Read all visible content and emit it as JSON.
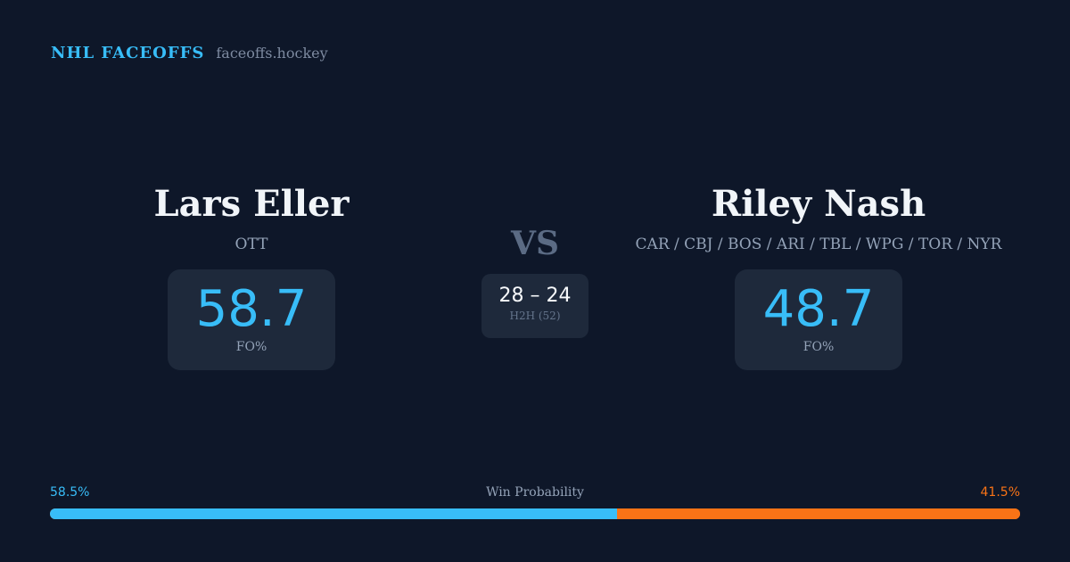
{
  "brand": {
    "title": "NHL FACEOFFS",
    "url": "faceoffs.hockey"
  },
  "left": {
    "name": "Lars Eller",
    "team": "OTT",
    "fo_pct": "58.7",
    "fo_label": "FO%"
  },
  "right": {
    "name": "Riley Nash",
    "team": "CAR / CBJ / BOS / ARI / TBL / WPG / TOR / NYR",
    "fo_pct": "48.7",
    "fo_label": "FO%"
  },
  "vs": "VS",
  "h2h": {
    "score": "28 – 24",
    "label": "H2H (52)"
  },
  "win_probability": {
    "label": "Win Probability",
    "left": "58.5%",
    "right": "41.5%",
    "left_value": 58.5,
    "colors": {
      "left": "#38bdf8",
      "right": "#f97316"
    }
  }
}
